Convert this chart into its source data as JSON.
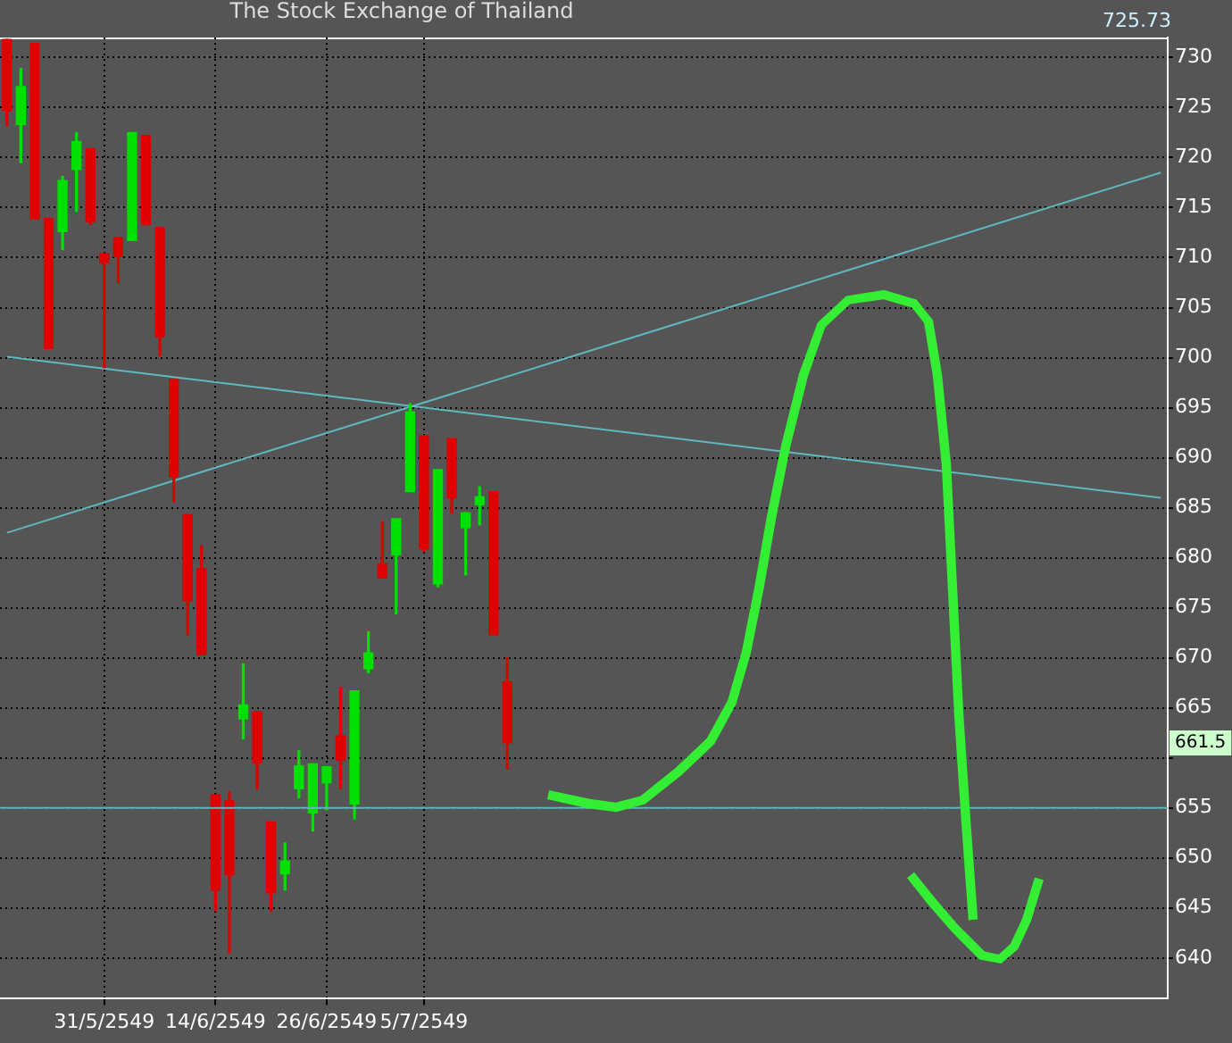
{
  "chart_data": {
    "type": "candlestick",
    "title": "The Stock Exchange of Thailand",
    "categories": [
      null,
      null,
      null,
      null,
      null,
      null,
      null,
      "31/5/2549",
      null,
      null,
      null,
      null,
      null,
      null,
      null,
      "14/6/2549",
      null,
      null,
      null,
      null,
      null,
      null,
      null,
      "26/6/2549",
      null,
      null,
      null,
      null,
      null,
      null,
      "5/7/2549",
      null,
      null,
      null,
      null,
      null,
      null,
      null,
      null,
      null,
      null,
      null,
      null,
      null,
      null,
      null,
      null,
      null,
      null,
      null,
      null,
      null,
      null,
      null,
      null,
      null,
      null,
      null,
      null,
      null,
      null,
      null,
      null,
      null,
      null,
      null,
      null,
      null,
      null,
      null,
      null,
      null,
      null,
      null,
      null,
      null,
      null,
      null,
      null,
      null,
      null,
      null,
      null,
      null
    ],
    "ohlc": [
      [
        731.8,
        731.8,
        723.2,
        724.7
      ],
      [
        723.3,
        728.9,
        719.5,
        727.1
      ],
      [
        731.4,
        731.4,
        713.9,
        713.9
      ],
      [
        713.9,
        713.9,
        700.9,
        700.9
      ],
      [
        712.6,
        718.1,
        710.8,
        717.7
      ],
      [
        718.8,
        722.5,
        714.6,
        721.6
      ],
      [
        720.9,
        720.9,
        713.3,
        713.6
      ],
      [
        710.4,
        710.4,
        699.0,
        709.5
      ],
      [
        712.0,
        712.0,
        707.5,
        710.1
      ],
      [
        711.7,
        722.5,
        711.7,
        722.5
      ],
      [
        722.2,
        722.2,
        713.3,
        713.3
      ],
      [
        713.0,
        713.0,
        700.2,
        702.1
      ],
      [
        697.8,
        697.8,
        685.6,
        688.1
      ],
      [
        684.3,
        684.3,
        672.3,
        675.7
      ],
      [
        678.9,
        681.2,
        670.3,
        670.3
      ],
      [
        656.3,
        656.3,
        644.7,
        646.8
      ],
      [
        655.7,
        656.6,
        640.5,
        648.3
      ],
      [
        663.9,
        669.4,
        661.9,
        665.3
      ],
      [
        664.6,
        664.6,
        656.9,
        659.5
      ],
      [
        653.6,
        653.6,
        644.7,
        646.5
      ],
      [
        648.4,
        651.5,
        646.8,
        649.7
      ],
      [
        656.9,
        660.7,
        656.0,
        659.2
      ],
      [
        654.5,
        659.4,
        652.7,
        659.4
      ],
      [
        657.5,
        659.1,
        654.8,
        659.1
      ],
      [
        662.2,
        667.0,
        656.9,
        659.8
      ],
      [
        655.4,
        666.7,
        653.9,
        666.7
      ],
      [
        668.9,
        672.6,
        668.5,
        670.5
      ],
      [
        679.4,
        683.6,
        678.0,
        678.0
      ],
      [
        680.3,
        683.9,
        674.4,
        683.9
      ],
      [
        686.6,
        695.4,
        686.6,
        694.6
      ],
      [
        692.2,
        692.2,
        680.6,
        680.9
      ],
      [
        677.4,
        688.8,
        677.1,
        688.8
      ],
      [
        691.9,
        691.9,
        684.5,
        686.0
      ],
      [
        683.0,
        684.5,
        678.3,
        684.5
      ],
      [
        685.3,
        687.1,
        683.3,
        686.1
      ],
      [
        686.6,
        686.6,
        672.3,
        672.3
      ],
      [
        667.6,
        670.0,
        658.9,
        661.5
      ],
      null,
      null,
      null,
      null,
      null,
      null,
      null,
      null,
      null,
      null,
      null,
      null,
      null,
      null,
      null,
      null,
      null,
      null,
      null,
      null,
      null,
      null,
      null,
      null,
      null,
      null,
      null,
      null,
      null,
      null,
      null,
      null,
      null,
      null,
      null,
      null,
      null,
      null,
      null,
      null,
      null,
      null,
      null,
      null,
      null,
      null,
      null
    ],
    "colors": [
      "#e00000",
      "#00e000",
      "#e00000",
      "#e00000",
      "#00e000",
      "#00e000",
      "#e00000",
      "#e00000",
      "#e00000",
      "#00e000",
      "#e00000",
      "#e00000",
      "#e00000",
      "#e00000",
      "#e00000",
      "#e00000",
      "#e00000",
      "#00e000",
      "#e00000",
      "#e00000",
      "#00e000",
      "#00e000",
      "#00e000",
      "#00e000",
      "#e00000",
      "#00e000",
      "#00e000",
      "#e00000",
      "#00e000",
      "#00e000",
      "#e00000",
      "#00e000",
      "#e00000",
      "#00e000",
      "#00e000",
      "#e00000",
      "#e00000",
      null,
      null,
      null,
      null,
      null,
      null,
      null,
      null,
      null,
      null,
      null,
      null,
      null,
      null,
      null,
      null,
      null,
      null,
      null,
      null,
      null,
      null,
      null,
      null,
      null,
      null,
      null,
      null,
      null,
      null,
      null,
      null,
      null,
      null,
      null,
      null,
      null,
      null,
      null,
      null,
      null,
      null,
      null,
      null,
      null,
      null,
      null
    ],
    "series": [
      {
        "type": "line",
        "color": "#5fb8c0",
        "values": [
          700.1,
          null,
          null,
          null,
          null,
          null,
          null,
          null,
          null,
          null,
          null,
          null,
          null,
          null,
          null,
          null,
          null,
          null,
          null,
          null,
          null,
          null,
          null,
          null,
          null,
          null,
          null,
          null,
          null,
          null,
          null,
          null,
          null,
          null,
          null,
          null,
          null,
          null,
          null,
          null,
          null,
          null,
          null,
          null,
          null,
          null,
          null,
          null,
          null,
          null,
          null,
          null,
          null,
          null,
          null,
          null,
          null,
          null,
          null,
          null,
          null,
          null,
          null,
          null,
          null,
          null,
          null,
          null,
          null,
          null,
          null,
          null,
          null,
          null,
          null,
          null,
          null,
          null,
          null,
          null,
          null,
          null,
          null,
          686.0
        ]
      },
      {
        "type": "line",
        "color": "#5fb8c0",
        "values": [
          682.5,
          null,
          null,
          null,
          null,
          null,
          null,
          null,
          null,
          null,
          null,
          null,
          null,
          null,
          null,
          null,
          null,
          null,
          null,
          null,
          null,
          null,
          null,
          null,
          null,
          null,
          null,
          null,
          null,
          null,
          null,
          null,
          null,
          null,
          null,
          null,
          null,
          null,
          null,
          null,
          null,
          null,
          null,
          null,
          null,
          null,
          null,
          null,
          null,
          null,
          null,
          null,
          null,
          null,
          null,
          null,
          null,
          null,
          null,
          null,
          null,
          null,
          null,
          null,
          null,
          null,
          null,
          null,
          null,
          null,
          null,
          null,
          null,
          null,
          null,
          null,
          null,
          null,
          null,
          null,
          null,
          null,
          null,
          718.5
        ]
      }
    ],
    "ylim": [
      636,
      732
    ],
    "yticks": [
      640,
      645,
      650,
      655,
      {
        "value": 660,
        "label": null
      },
      665,
      670,
      675,
      680,
      685,
      690,
      695,
      700,
      705,
      710,
      715,
      720,
      725,
      730
    ],
    "ref_lines": [
      {
        "axis": "y",
        "value": 655,
        "color": "#5fb8c0"
      }
    ],
    "annotations": [
      "725.73",
      {
        "text": "661.5",
        "y": 661.5
      }
    ],
    "grid": true,
    "legend": false
  }
}
